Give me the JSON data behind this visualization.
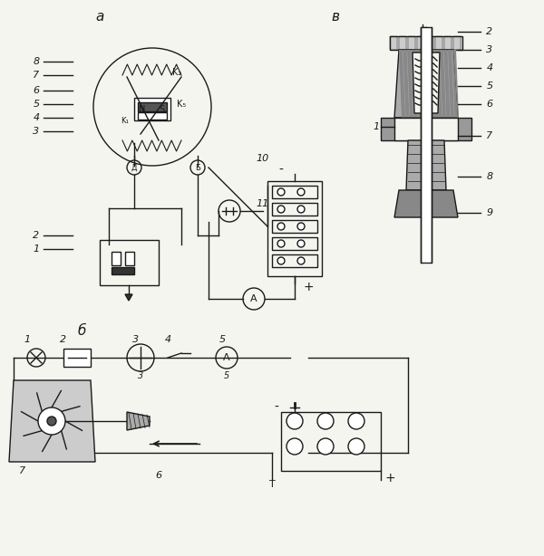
{
  "bg_color": "#f5f5f0",
  "line_color": "#1a1a1a",
  "hatch_color": "#1a1a1a",
  "label_a": "a",
  "label_b": "б",
  "label_v": "в",
  "fig_width": 6.0,
  "fig_height": 6.14
}
